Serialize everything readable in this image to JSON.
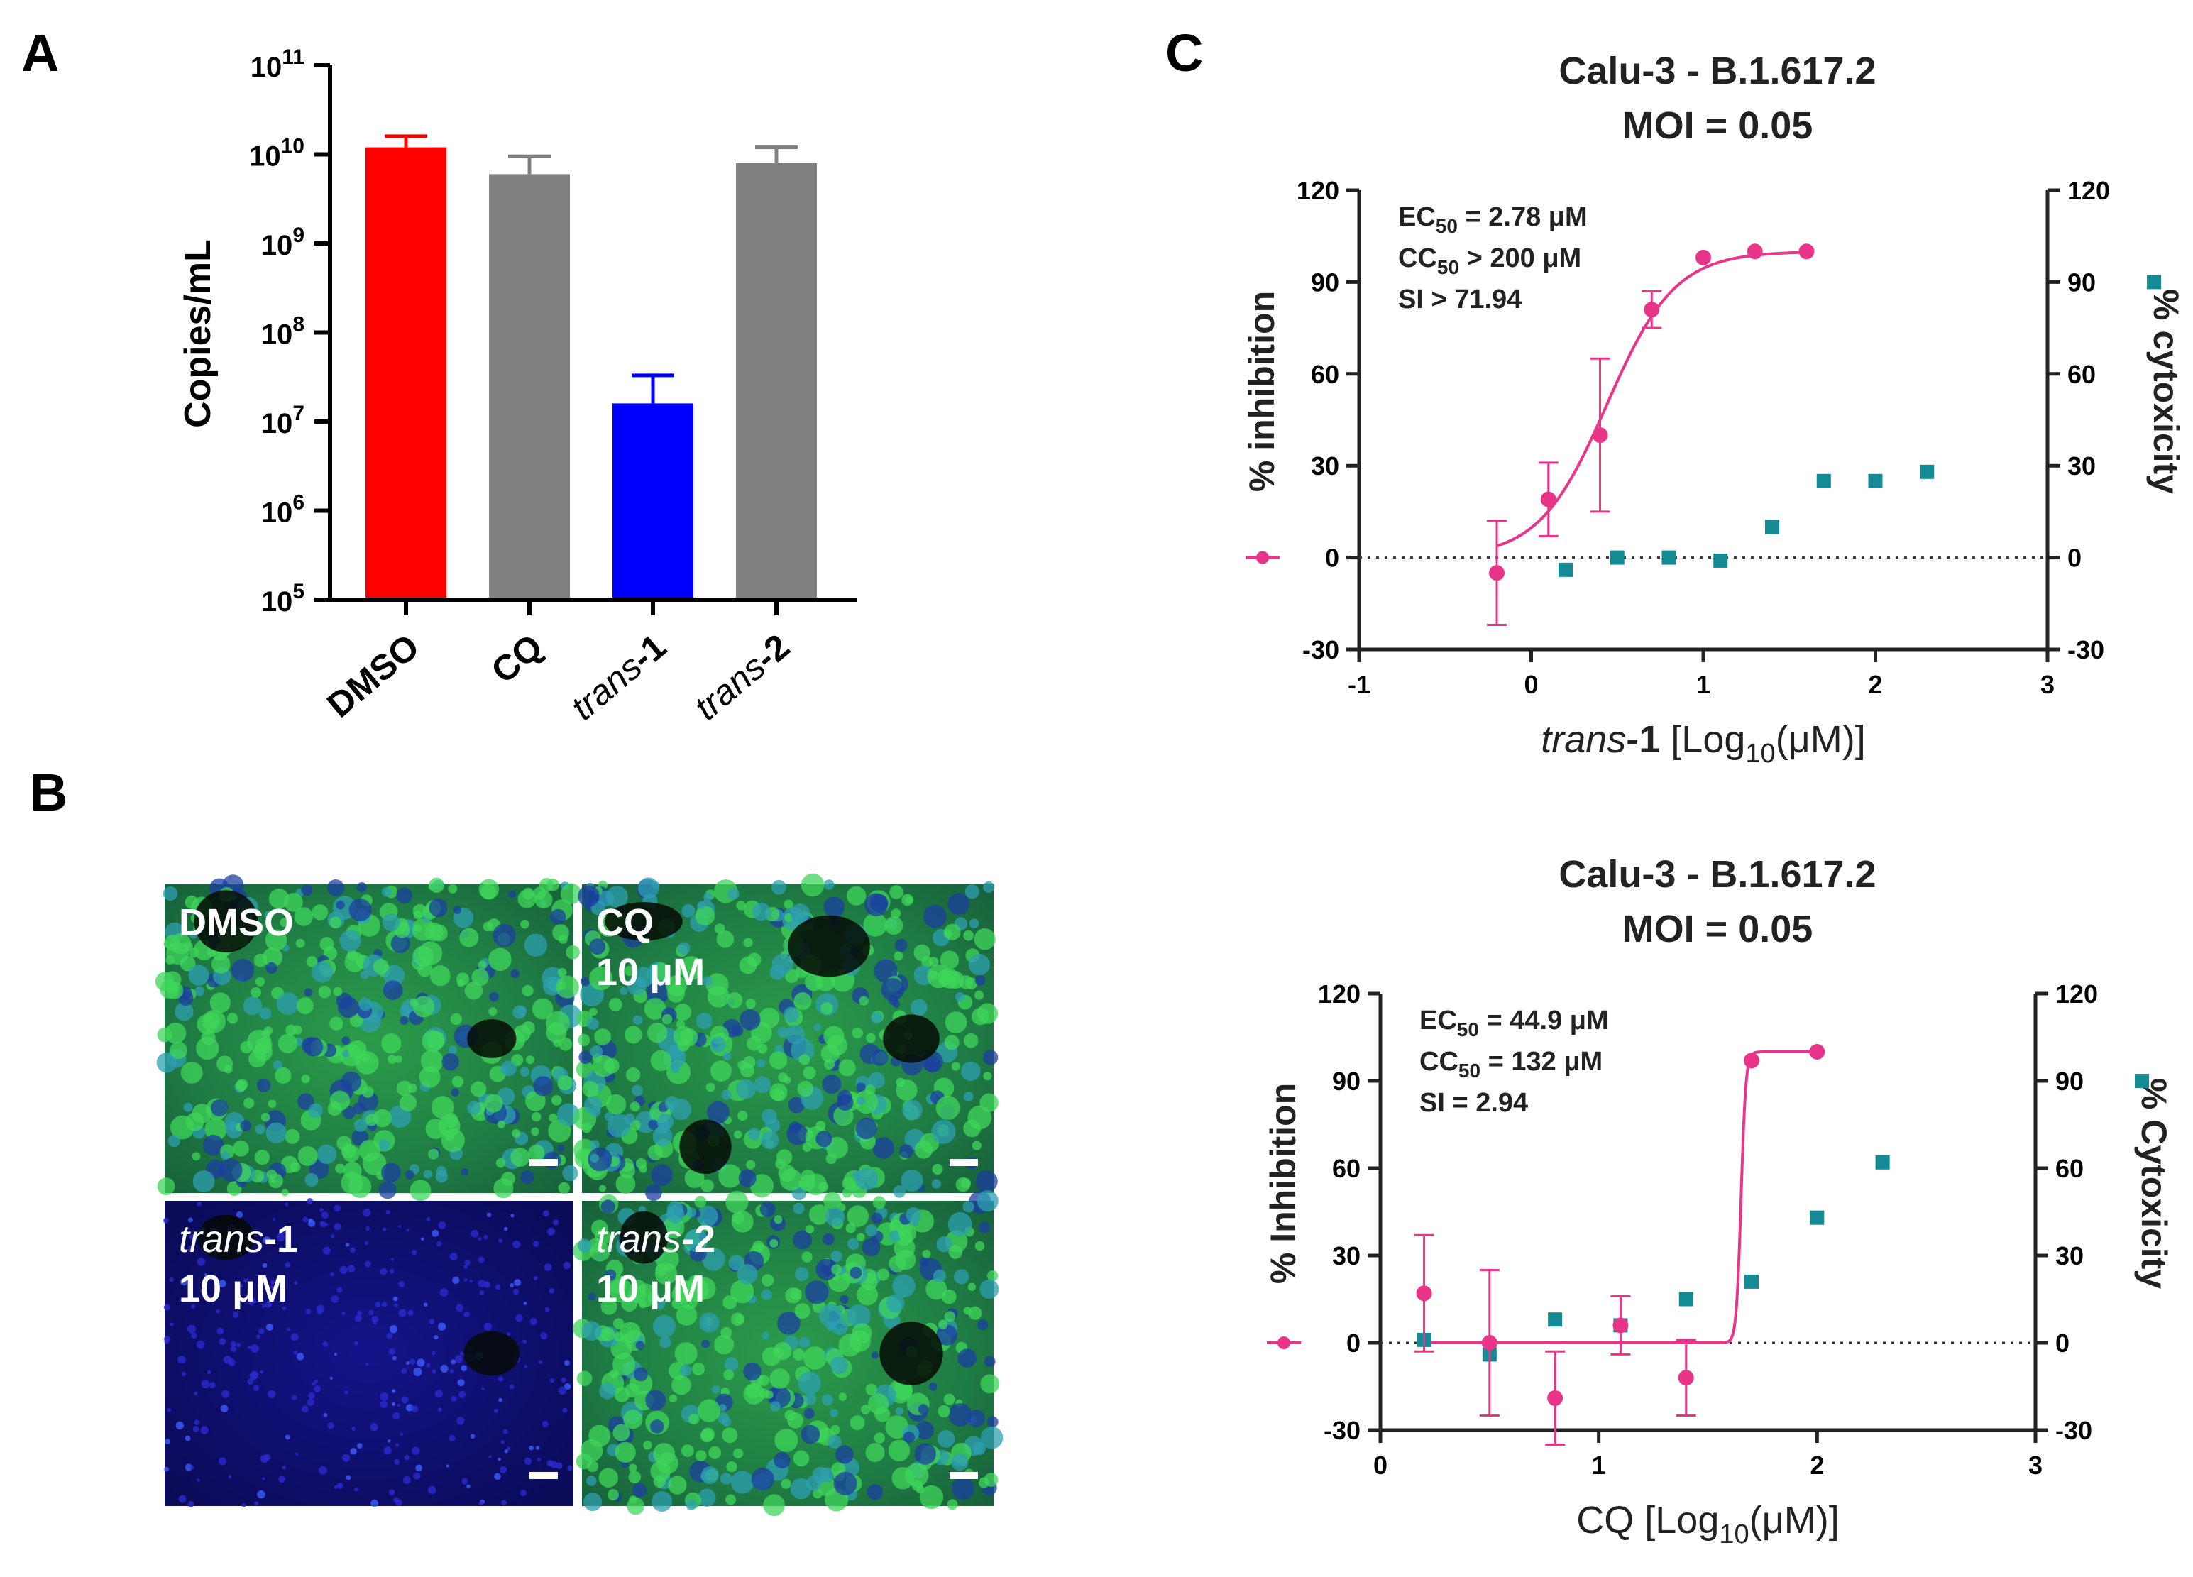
{
  "panels": {
    "A": {
      "letter": "A"
    },
    "B": {
      "letter": "B"
    },
    "C": {
      "letter": "C"
    }
  },
  "colors": {
    "dmso": "#ff0000",
    "cq": "#808080",
    "trans1": "#0000ff",
    "trans2": "#808080",
    "inhibition": "#e8358a",
    "cytotoxicity": "#138a94",
    "zero_line": "#333333",
    "micrograph_blue": "#0a0a6e",
    "micrograph_green": "#2fc23a"
  },
  "chart_data": [
    {
      "type": "bar",
      "panel": "A",
      "ylabel": "Copies/mL",
      "yscale": "log",
      "ylim_exp": [
        5,
        11
      ],
      "ytick_base": "10",
      "ytick_exps": [
        "5",
        "6",
        "7",
        "8",
        "9",
        "10",
        "11"
      ],
      "categories": [
        {
          "pre": "DMSO",
          "post": ""
        },
        {
          "pre": "CQ",
          "post": ""
        },
        {
          "pre": "trans",
          "post": "-1"
        },
        {
          "pre": "trans",
          "post": "-2"
        }
      ],
      "category_italic_prefix": [
        false,
        false,
        true,
        true
      ],
      "values": [
        12000000000.0,
        6000000000.0,
        16000000.0,
        8000000000.0
      ],
      "error_upper": [
        16000000000.0,
        9500000000.0,
        33000000.0,
        12000000000.0
      ],
      "bar_colors": [
        "#ff0000",
        "#808080",
        "#0000ff",
        "#808080"
      ]
    },
    {
      "type": "scatter",
      "panel": "C-top",
      "title_line1": "Calu-3 - B.1.617.2",
      "title_line2": "MOI = 0.05",
      "ylabel_left": "% inhibition",
      "ylabel_right": "% cytoxicity",
      "xlabel_pre": "trans",
      "xlabel_bold": "-1",
      "xlabel_unit_pre": "[Log",
      "xlabel_sub": "10",
      "xlabel_unit_post": "(μM)]",
      "xlim": [
        -1,
        3
      ],
      "ylim": [
        -30,
        120
      ],
      "xticks": [
        "-1",
        "0",
        "1",
        "2",
        "3"
      ],
      "yticks": [
        "-30",
        "0",
        "30",
        "60",
        "90",
        "120"
      ],
      "annotations": [
        {
          "pre": "EC",
          "sub": "50",
          "post": " = 2.78 μM"
        },
        {
          "pre": "CC",
          "sub": "50",
          "post": " > 200 μM"
        },
        {
          "pre": "SI > 71.94",
          "sub": "",
          "post": ""
        }
      ],
      "series": [
        {
          "name": "% inhibition",
          "marker": "circle",
          "x": [
            -0.2,
            0.1,
            0.4,
            0.7,
            1.0,
            1.3,
            1.6
          ],
          "y": [
            -5,
            19,
            40,
            81,
            98,
            100,
            100
          ],
          "err": [
            17,
            12,
            25,
            6,
            1,
            1,
            1
          ],
          "fit": {
            "bottom": 0,
            "top": 100,
            "logEC50": 0.44,
            "hill": 2.2,
            "x_range": [
              -0.2,
              1.6
            ]
          }
        },
        {
          "name": "% cytotoxicity",
          "marker": "square",
          "x": [
            0.2,
            0.5,
            0.8,
            1.1,
            1.4,
            1.7,
            2.0,
            2.3
          ],
          "y": [
            -4,
            0,
            0,
            -1,
            10,
            25,
            25,
            28
          ]
        }
      ]
    },
    {
      "type": "scatter",
      "panel": "C-bottom",
      "title_line1": "Calu-3 - B.1.617.2",
      "title_line2": "MOI = 0.05",
      "ylabel_left": "% Inhibition",
      "ylabel_right": "% Cytoxicity",
      "xlabel_pre": "CQ",
      "xlabel_bold": "",
      "xlabel_unit_pre": " [Log",
      "xlabel_sub": "10",
      "xlabel_unit_post": "(μM)]",
      "xlim": [
        0,
        3
      ],
      "ylim": [
        -30,
        120
      ],
      "xticks": [
        "0",
        "1",
        "2",
        "3"
      ],
      "yticks": [
        "-30",
        "0",
        "30",
        "60",
        "90",
        "120"
      ],
      "annotations": [
        {
          "pre": "EC",
          "sub": "50",
          "post": " = 44.9 μM"
        },
        {
          "pre": "CC",
          "sub": "50",
          "post": " = 132 μM"
        },
        {
          "pre": "SI = 2.94",
          "sub": "",
          "post": ""
        }
      ],
      "series": [
        {
          "name": "% Inhibition",
          "marker": "circle",
          "x": [
            0.2,
            0.5,
            0.8,
            1.1,
            1.4,
            1.7,
            2.0
          ],
          "y": [
            17,
            0,
            -19,
            6,
            -12,
            97,
            100
          ],
          "err": [
            20,
            25,
            16,
            10,
            13,
            1,
            1
          ],
          "fit": {
            "bottom": 0,
            "top": 100,
            "logEC50": 1.652,
            "hill": 40,
            "x_range": [
              0.2,
              2.0
            ]
          }
        },
        {
          "name": "% Cytotoxicity",
          "marker": "square",
          "x": [
            0.2,
            0.5,
            0.8,
            1.1,
            1.4,
            1.7,
            2.0,
            2.3
          ],
          "y": [
            1,
            -4,
            8,
            6,
            15,
            21,
            43,
            62
          ]
        }
      ]
    }
  ],
  "micrographs": [
    {
      "label_pre": "DMSO",
      "label_post": "",
      "dose": "",
      "stain": "green"
    },
    {
      "label_pre": "CQ",
      "label_post": "",
      "dose": "10 μM",
      "stain": "green"
    },
    {
      "label_pre": "trans",
      "label_post": "-1",
      "dose": "10 μM",
      "stain": "blue"
    },
    {
      "label_pre": "trans",
      "label_post": "-2",
      "dose": "10 μM",
      "stain": "green"
    }
  ]
}
